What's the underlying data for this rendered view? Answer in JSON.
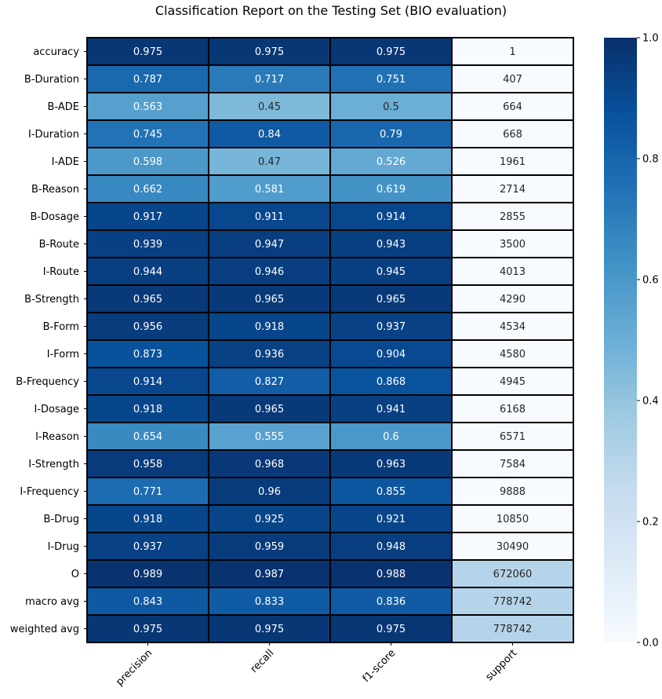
{
  "chart_data": {
    "type": "heatmap",
    "title": "Classification Report on the Testing Set (BIO evaluation)",
    "xlabel": "",
    "ylabel": "",
    "columns": [
      "precision",
      "recall",
      "f1-score",
      "support"
    ],
    "rows": [
      "accuracy",
      "B-Duration",
      "B-ADE",
      "I-Duration",
      "I-ADE",
      "B-Reason",
      "B-Dosage",
      "B-Route",
      "I-Route",
      "B-Strength",
      "B-Form",
      "I-Form",
      "B-Frequency",
      "I-Dosage",
      "I-Reason",
      "I-Strength",
      "I-Frequency",
      "B-Drug",
      "I-Drug",
      "O",
      "macro avg",
      "weighted avg"
    ],
    "values": [
      [
        "0.975",
        "0.975",
        "0.975",
        "1"
      ],
      [
        "0.787",
        "0.717",
        "0.751",
        "407"
      ],
      [
        "0.563",
        "0.45",
        "0.5",
        "664"
      ],
      [
        "0.745",
        "0.84",
        "0.79",
        "668"
      ],
      [
        "0.598",
        "0.47",
        "0.526",
        "1961"
      ],
      [
        "0.662",
        "0.581",
        "0.619",
        "2714"
      ],
      [
        "0.917",
        "0.911",
        "0.914",
        "2855"
      ],
      [
        "0.939",
        "0.947",
        "0.943",
        "3500"
      ],
      [
        "0.944",
        "0.946",
        "0.945",
        "4013"
      ],
      [
        "0.965",
        "0.965",
        "0.965",
        "4290"
      ],
      [
        "0.956",
        "0.918",
        "0.937",
        "4534"
      ],
      [
        "0.873",
        "0.936",
        "0.904",
        "4580"
      ],
      [
        "0.914",
        "0.827",
        "0.868",
        "4945"
      ],
      [
        "0.918",
        "0.965",
        "0.941",
        "6168"
      ],
      [
        "0.654",
        "0.555",
        "0.6",
        "6571"
      ],
      [
        "0.958",
        "0.968",
        "0.963",
        "7584"
      ],
      [
        "0.771",
        "0.96",
        "0.855",
        "9888"
      ],
      [
        "0.918",
        "0.925",
        "0.921",
        "10850"
      ],
      [
        "0.937",
        "0.959",
        "0.948",
        "30490"
      ],
      [
        "0.989",
        "0.987",
        "0.988",
        "672060"
      ],
      [
        "0.843",
        "0.833",
        "0.836",
        "778742"
      ],
      [
        "0.975",
        "0.975",
        "0.975",
        "778742"
      ]
    ],
    "support_color_values": [
      0,
      0,
      0,
      0,
      0,
      0,
      0,
      0,
      0,
      0,
      0,
      0,
      0,
      0,
      0,
      0,
      0,
      0,
      0,
      0.3,
      0.3,
      0.3
    ],
    "colormap": "Blues",
    "colorbar": {
      "range": [
        0.0,
        1.0
      ],
      "ticks": [
        "0.0",
        "0.2",
        "0.4",
        "0.6",
        "0.8",
        "1.0"
      ]
    },
    "legend": "none",
    "grid": false
  }
}
